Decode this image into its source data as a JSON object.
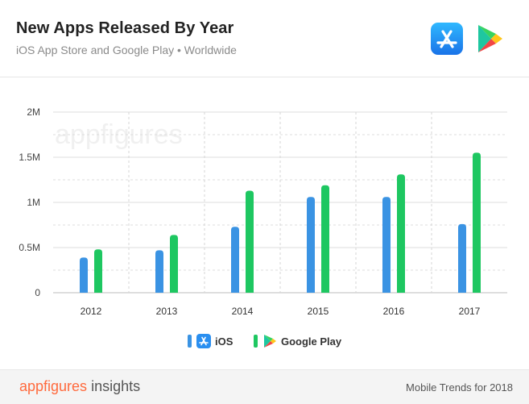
{
  "header": {
    "title": "New Apps Released By Year",
    "subtitle": "iOS App Store and Google Play • Worldwide"
  },
  "watermark": "appfigures",
  "legend": {
    "ios": "iOS",
    "google_play": "Google Play"
  },
  "footer": {
    "brand": "appfigures",
    "brand_suffix": "insights",
    "note": "Mobile Trends for 2018"
  },
  "colors": {
    "ios": "#3a93e3",
    "google_play": "#1ec761",
    "brand": "#ff6a3d"
  },
  "chart_data": {
    "type": "bar",
    "categories": [
      "2012",
      "2013",
      "2014",
      "2015",
      "2016",
      "2017"
    ],
    "series": [
      {
        "name": "iOS",
        "values": [
          390000,
          470000,
          730000,
          1060000,
          1060000,
          760000
        ]
      },
      {
        "name": "Google Play",
        "values": [
          480000,
          640000,
          1130000,
          1190000,
          1310000,
          1550000
        ]
      }
    ],
    "ylim": [
      0,
      2000000
    ],
    "yticks": [
      0,
      500000,
      1000000,
      1500000,
      2000000
    ],
    "ytick_labels": [
      "0",
      "0.5M",
      "1M",
      "1.5M",
      "2M"
    ],
    "title": "",
    "xlabel": "",
    "ylabel": ""
  }
}
